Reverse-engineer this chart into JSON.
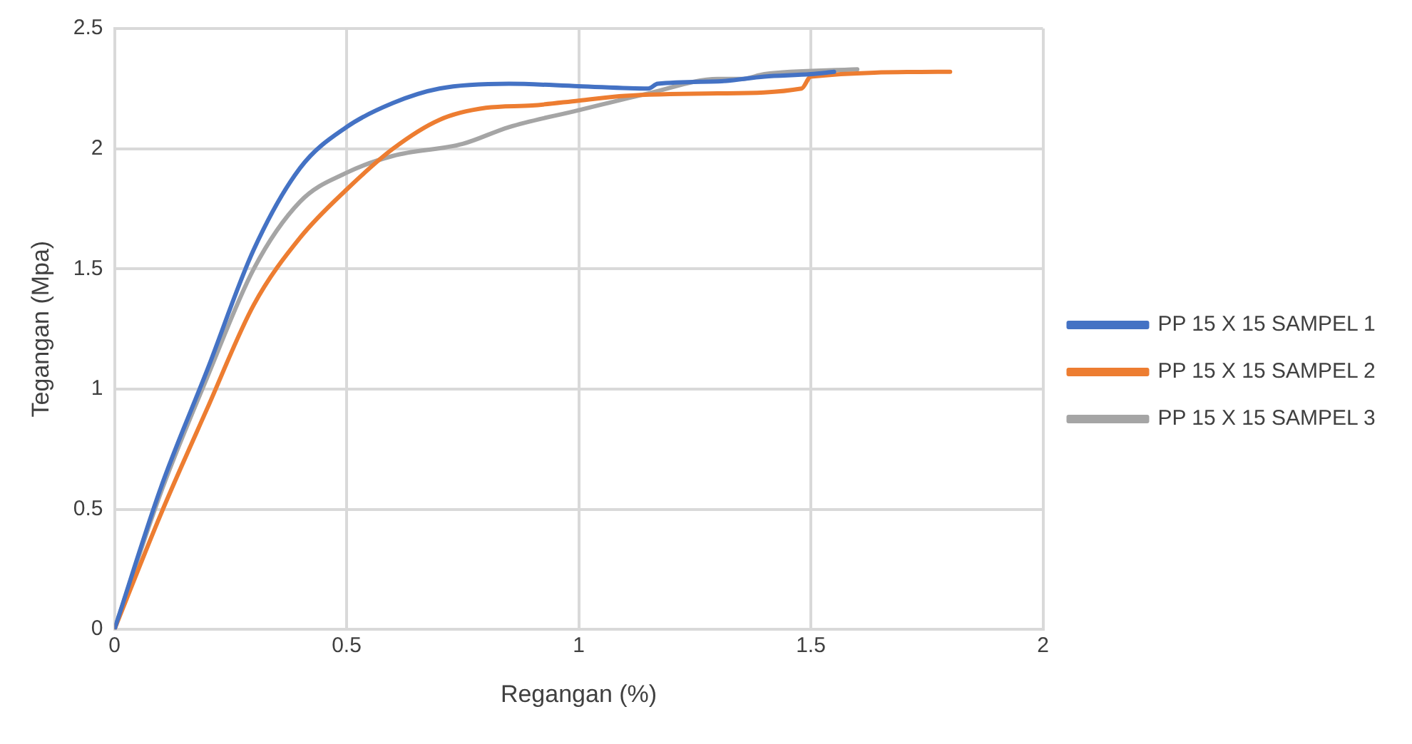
{
  "chart_data": {
    "type": "line",
    "xlabel": "Regangan (%)",
    "ylabel": "Tegangan (Mpa)",
    "xlim": [
      0,
      2
    ],
    "xticks": [
      0,
      0.5,
      1,
      1.5,
      2
    ],
    "ylim": [
      0,
      2.5
    ],
    "yticks": [
      0,
      0.5,
      1,
      1.5,
      2,
      2.5
    ],
    "grid": true,
    "legend": "right",
    "marker": "none",
    "series": [
      {
        "name": "PP 15 X 15 SAMPEL 1",
        "color": "#4472c4",
        "x": [
          0,
          0.1,
          0.2,
          0.3,
          0.4,
          0.5,
          0.6,
          0.7,
          0.85,
          1.0,
          1.15,
          1.17,
          1.3,
          1.4,
          1.5,
          1.55
        ],
        "values": [
          0,
          0.59,
          1.08,
          1.58,
          1.92,
          2.09,
          2.19,
          2.25,
          2.27,
          2.26,
          2.25,
          2.27,
          2.28,
          2.3,
          2.31,
          2.32
        ]
      },
      {
        "name": "PP 15 X 15 SAMPEL 2",
        "color": "#ed7d31",
        "x": [
          0,
          0.1,
          0.2,
          0.3,
          0.4,
          0.5,
          0.6,
          0.7,
          0.8,
          0.9,
          1.0,
          1.1,
          1.3,
          1.48,
          1.5,
          1.8
        ],
        "values": [
          0,
          0.48,
          0.92,
          1.35,
          1.63,
          1.83,
          2.0,
          2.12,
          2.17,
          2.18,
          2.2,
          2.22,
          2.23,
          2.25,
          2.3,
          2.32
        ]
      },
      {
        "name": "PP 15 X 15 SAMPEL 3",
        "color": "#a5a5a5",
        "x": [
          0,
          0.1,
          0.2,
          0.3,
          0.4,
          0.5,
          0.6,
          0.75,
          0.85,
          1.0,
          1.15,
          1.3,
          1.35,
          1.4,
          1.6
        ],
        "values": [
          0,
          0.57,
          1.05,
          1.5,
          1.78,
          1.9,
          1.97,
          2.02,
          2.09,
          2.16,
          2.23,
          2.29,
          2.29,
          2.31,
          2.33
        ]
      }
    ]
  }
}
